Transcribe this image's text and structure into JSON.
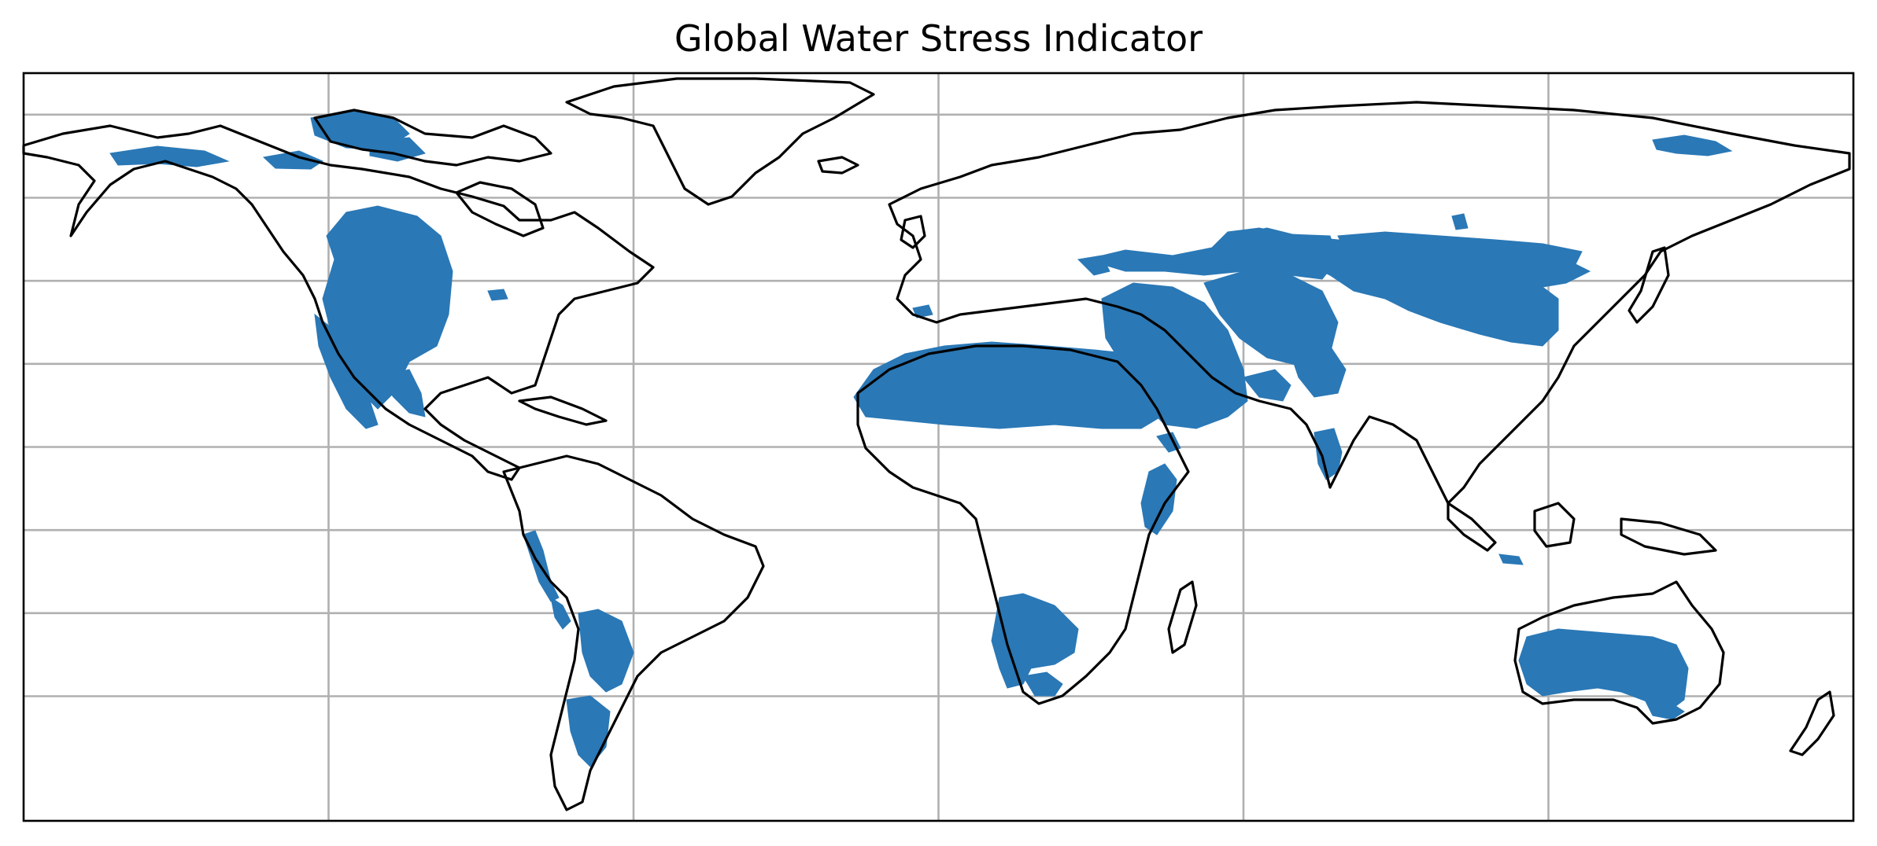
{
  "title": "Global Water Stress Indicator",
  "colors": {
    "stress_fill": "#2a78b6",
    "coastline": "#000000",
    "gridline": "#b0b0b0",
    "background": "#ffffff"
  },
  "map": {
    "projection": "plate-carree",
    "extent_lon": [
      -180,
      180
    ],
    "extent_lat": [
      -90,
      90
    ],
    "gridlines": true,
    "grid_lon": [
      -120,
      -60,
      0,
      60,
      120
    ],
    "grid_lat": [
      -60,
      -40,
      -20,
      0,
      20,
      40,
      60,
      80
    ],
    "highlighted_category": "water stress"
  }
}
